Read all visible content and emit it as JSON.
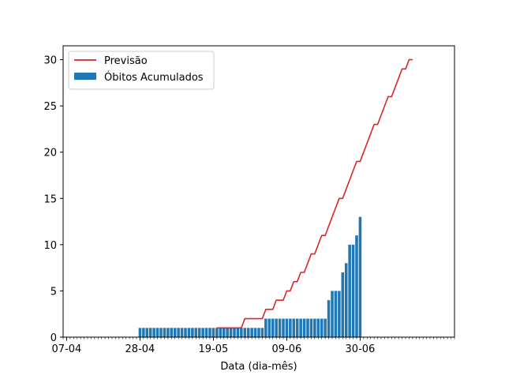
{
  "chart_data": {
    "type": "bar",
    "title": "",
    "xlabel": "Data (dia-mês)",
    "ylabel": "",
    "xlim": [
      "2020-04-06",
      "2020-07-27"
    ],
    "ylim": [
      0,
      31.5
    ],
    "major_xticks": [
      {
        "date": "2020-04-07",
        "label": "07-04"
      },
      {
        "date": "2020-04-28",
        "label": "28-04"
      },
      {
        "date": "2020-05-19",
        "label": "19-05"
      },
      {
        "date": "2020-06-09",
        "label": "09-06"
      },
      {
        "date": "2020-06-30",
        "label": "30-06"
      }
    ],
    "minor_xticks": "daily",
    "yticks": [
      0,
      5,
      10,
      15,
      20,
      25,
      30
    ],
    "grid": false,
    "legend": {
      "position": "top-left",
      "entries": [
        "Previsão",
        "Óbitos Acumulados"
      ]
    },
    "colors": {
      "bars": "#1f77b4",
      "line": "#d62728"
    },
    "series": [
      {
        "name": "Óbitos Acumulados",
        "kind": "bar",
        "start": "2020-04-28",
        "values": [
          1,
          1,
          1,
          1,
          1,
          1,
          1,
          1,
          1,
          1,
          1,
          1,
          1,
          1,
          1,
          1,
          1,
          1,
          1,
          1,
          1,
          1,
          1,
          1,
          1,
          1,
          1,
          1,
          1,
          1,
          1,
          1,
          1,
          1,
          1,
          1,
          2,
          2,
          2,
          2,
          2,
          2,
          2,
          2,
          2,
          2,
          2,
          2,
          2,
          2,
          2,
          2,
          2,
          2,
          4,
          5,
          5,
          5,
          7,
          8,
          10,
          10,
          11,
          13
        ]
      },
      {
        "name": "Previsão",
        "kind": "line",
        "points": [
          [
            "2020-05-20",
            1
          ],
          [
            "2020-05-27",
            1
          ],
          [
            "2020-05-28",
            2
          ],
          [
            "2020-06-02",
            2
          ],
          [
            "2020-06-03",
            3
          ],
          [
            "2020-06-05",
            3
          ],
          [
            "2020-06-06",
            4
          ],
          [
            "2020-06-08",
            4
          ],
          [
            "2020-06-09",
            5
          ],
          [
            "2020-06-10",
            5
          ],
          [
            "2020-06-11",
            6
          ],
          [
            "2020-06-12",
            6
          ],
          [
            "2020-06-13",
            7
          ],
          [
            "2020-06-14",
            7
          ],
          [
            "2020-06-15",
            8
          ],
          [
            "2020-06-16",
            9
          ],
          [
            "2020-06-17",
            9
          ],
          [
            "2020-06-18",
            10
          ],
          [
            "2020-06-19",
            11
          ],
          [
            "2020-06-20",
            11
          ],
          [
            "2020-06-21",
            12
          ],
          [
            "2020-06-22",
            13
          ],
          [
            "2020-06-23",
            14
          ],
          [
            "2020-06-24",
            15
          ],
          [
            "2020-06-25",
            15
          ],
          [
            "2020-06-26",
            16
          ],
          [
            "2020-06-27",
            17
          ],
          [
            "2020-06-28",
            18
          ],
          [
            "2020-06-29",
            19
          ],
          [
            "2020-06-30",
            19
          ],
          [
            "2020-07-01",
            20
          ],
          [
            "2020-07-02",
            21
          ],
          [
            "2020-07-03",
            22
          ],
          [
            "2020-07-04",
            23
          ],
          [
            "2020-07-05",
            23
          ],
          [
            "2020-07-06",
            24
          ],
          [
            "2020-07-07",
            25
          ],
          [
            "2020-07-08",
            26
          ],
          [
            "2020-07-09",
            26
          ],
          [
            "2020-07-10",
            27
          ],
          [
            "2020-07-11",
            28
          ],
          [
            "2020-07-12",
            29
          ],
          [
            "2020-07-13",
            29
          ],
          [
            "2020-07-14",
            30
          ],
          [
            "2020-07-15",
            30
          ]
        ]
      }
    ]
  }
}
